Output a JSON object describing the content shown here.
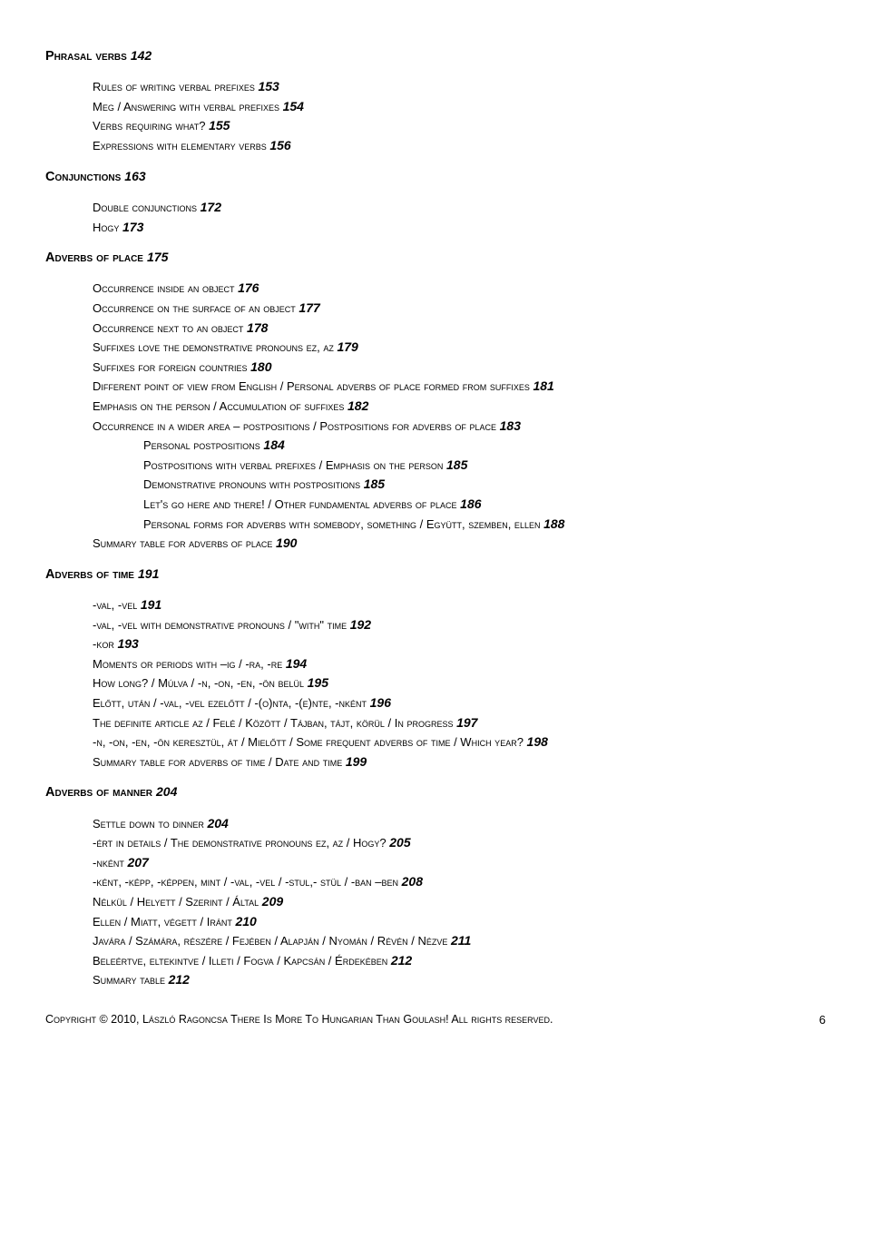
{
  "sections": [
    {
      "cls": "h1 entry",
      "text": "Phrasal verbs",
      "page": "142",
      "post": ""
    },
    {
      "cls": "h2 entry",
      "text": "Rules of writing verbal prefixes",
      "page": "153",
      "post": ""
    },
    {
      "cls": "h2 entry",
      "text": "Meg / Answering with verbal prefixes",
      "page": "154",
      "post": ""
    },
    {
      "cls": "h2 entry",
      "text": "Verbs requiring what?",
      "page": "155",
      "post": ""
    },
    {
      "cls": "h2 entry block",
      "text": "Expressions with elementary verbs",
      "page": "156",
      "post": ""
    },
    {
      "cls": "h1 entry",
      "text": "Conjunctions",
      "page": "163",
      "post": ""
    },
    {
      "cls": "h2 entry",
      "text": "Double conjunctions",
      "page": "172",
      "post": ""
    },
    {
      "cls": "h2 entry block",
      "text": "Hogy",
      "page": "173",
      "post": ""
    },
    {
      "cls": "h1 entry",
      "text": "Adverbs of place",
      "page": "175",
      "post": ""
    },
    {
      "cls": "h2 entry",
      "text": "Occurrence inside an object",
      "page": "176",
      "post": ""
    },
    {
      "cls": "h2 entry",
      "text": "Occurrence on the surface of an object",
      "page": "177",
      "post": ""
    },
    {
      "cls": "h2 entry",
      "text": "Occurrence next to an object",
      "page": "178",
      "post": ""
    },
    {
      "cls": "h2 entry",
      "text": "Suffixes love the demonstrative pronouns ez, az",
      "page": "179",
      "post": ""
    },
    {
      "cls": "h2 entry",
      "text": "Suffixes for foreign countries",
      "page": "180",
      "post": ""
    },
    {
      "cls": "h2 entry",
      "text": "Different point of view from English / Personal adverbs of place formed from suffixes",
      "page": "181",
      "post": ""
    },
    {
      "cls": "h2 entry",
      "text": "Emphasis on the person / Accumulation of suffixes",
      "page": "182",
      "post": ""
    },
    {
      "cls": "h2 entry",
      "text": "Occurrence in a wider area – postpositions / Postpositions for adverbs of place",
      "page": "183",
      "post": ""
    },
    {
      "cls": "h3 entry",
      "text": "Personal postpositions",
      "page": "184",
      "post": ""
    },
    {
      "cls": "h3 entry",
      "text": "Postpositions with verbal prefixes / Emphasis on the person",
      "page": "185",
      "post": ""
    },
    {
      "cls": "h3 entry",
      "text": "Demonstrative pronouns with postpositions",
      "page": "185",
      "post": ""
    },
    {
      "cls": "h3 entry",
      "text": "Let's go here and there! / Other fundamental adverbs of place",
      "page": "186",
      "post": ""
    },
    {
      "cls": "h3 entry",
      "text": "Personal forms for adverbs with somebody, something / Együtt, szemben, ellen",
      "page": "188",
      "post": ""
    },
    {
      "cls": "h2 entry block",
      "text": "Summary table for adverbs of place",
      "page": "190",
      "post": ""
    },
    {
      "cls": "h1 entry",
      "text": "Adverbs of time",
      "page": "191",
      "post": ""
    },
    {
      "cls": "h2 entry",
      "text": "-val, -vel",
      "page": "191",
      "post": ""
    },
    {
      "cls": "h2 entry",
      "text": "-val, -vel with demonstrative pronouns / \"with\" time",
      "page": "192",
      "post": ""
    },
    {
      "cls": "h2 entry",
      "text": "-kor",
      "page": "193",
      "post": ""
    },
    {
      "cls": "h2 entry",
      "text": "Moments or periods with –ig / -ra, -re",
      "page": "194",
      "post": ""
    },
    {
      "cls": "h2 entry",
      "text": "How long? / Múlva / -n, -on, -en, -ön belül",
      "page": "195",
      "post": ""
    },
    {
      "cls": "h2 entry",
      "text": "Előtt, után / -val, -vel ezelőtt / -(o)nta, -(e)nte, -nként",
      "page": "196",
      "post": ""
    },
    {
      "cls": "h2 entry",
      "text": "The definite article az / Felé / Között / Tájban, tájt, körül / In progress",
      "page": "197",
      "post": ""
    },
    {
      "cls": "h2 entry",
      "text": "-n, -on, -en, -ön keresztül, át / Mielőtt / Some frequent adverbs of time / Which year?",
      "page": "198",
      "post": ""
    },
    {
      "cls": "h2 entry block",
      "text": "Summary table for adverbs of time / Date and time",
      "page": "199",
      "post": ""
    },
    {
      "cls": "h1 entry",
      "text": "Adverbs of manner",
      "page": "204",
      "post": ""
    },
    {
      "cls": "h2 entry",
      "text": "Settle down to dinner",
      "page": "204",
      "post": ""
    },
    {
      "cls": "h2 entry",
      "text": "-ért in details / The demonstrative pronouns ez, az / Hogy?",
      "page": "205",
      "post": ""
    },
    {
      "cls": "h2 entry",
      "text": "-nként ",
      "page": "207",
      "post": ""
    },
    {
      "cls": "h2 entry",
      "text": "-ként, -képp, -képpen, mint / -val, -vel / -stul,- stül / -ban –ben",
      "page": "208",
      "post": ""
    },
    {
      "cls": "h2 entry",
      "text": "Nélkül / Helyett / Szerint / Által",
      "page": "209",
      "post": ""
    },
    {
      "cls": "h2 entry",
      "text": "Ellen / Miatt, végett / Iránt",
      "page": "210",
      "post": ""
    },
    {
      "cls": "h2 entry",
      "text": "Javára / Számára, részére / Fejében / Alapján / Nyomán / Révén / Nézve",
      "page": "211",
      "post": ""
    },
    {
      "cls": "h2 entry",
      "text": "Beleértve, eltekintve / Illeti / Fogva / Kapcsán / Érdekében",
      "page": "212",
      "post": ""
    },
    {
      "cls": "h2 entry",
      "text": "Summary table",
      "page": "212",
      "post": ""
    }
  ],
  "footer_text": "Copyright © 2010, László Ragoncsa There Is More To Hungarian Than Goulash! All rights reserved.",
  "page_number": "6"
}
